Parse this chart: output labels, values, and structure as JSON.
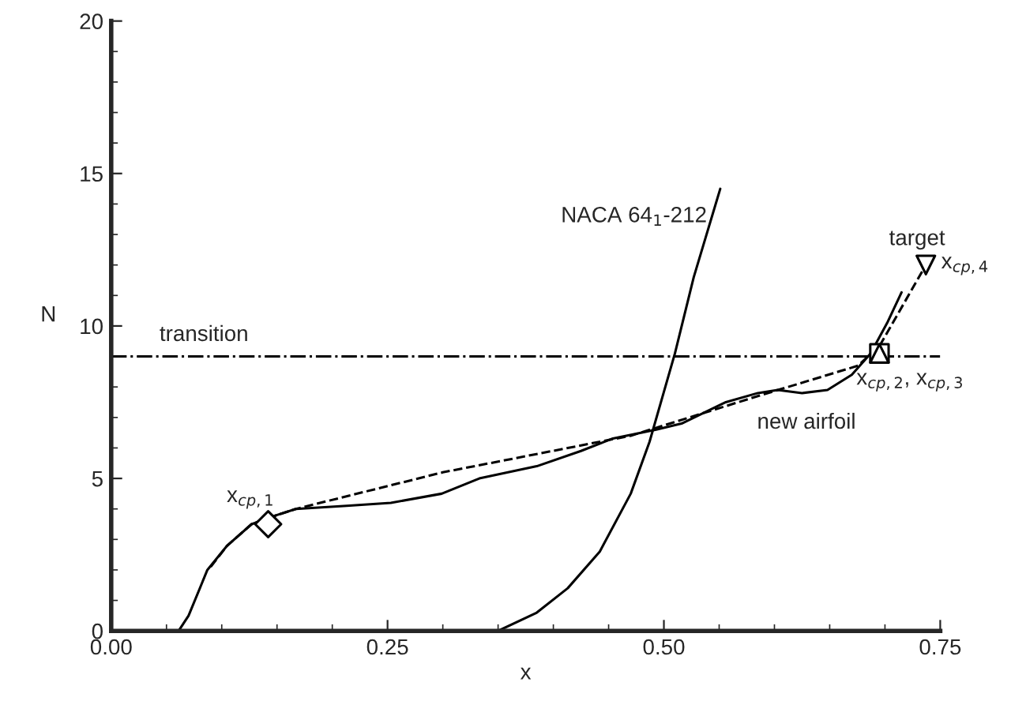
{
  "chart_data": {
    "type": "line",
    "xlabel": "x",
    "ylabel": "N",
    "xlim": [
      0,
      0.75
    ],
    "ylim": [
      0,
      20
    ],
    "xticks": [
      {
        "value": 0,
        "label": "0.00"
      },
      {
        "value": 0.25,
        "label": "0.25"
      },
      {
        "value": 0.5,
        "label": "0.50"
      },
      {
        "value": 0.75,
        "label": "0.75"
      }
    ],
    "yticks": [
      0,
      5,
      10,
      15,
      20
    ],
    "grid": false,
    "legend": false,
    "series": [
      {
        "name": "new airfoil",
        "color": "#000000",
        "line_style": "solid",
        "x": [
          0.061,
          0.07,
          0.087,
          0.105,
          0.127,
          0.15,
          0.167,
          0.213,
          0.253,
          0.299,
          0.333,
          0.385,
          0.425,
          0.453,
          0.493,
          0.516,
          0.556,
          0.585,
          0.603,
          0.625,
          0.648,
          0.67,
          0.687,
          0.702,
          0.715
        ],
        "values": [
          0,
          0.5,
          2.0,
          2.8,
          3.5,
          3.8,
          4.0,
          4.1,
          4.2,
          4.5,
          5.0,
          5.4,
          5.9,
          6.3,
          6.6,
          6.8,
          7.5,
          7.8,
          7.9,
          7.8,
          7.9,
          8.4,
          9.1,
          10.1,
          11.1
        ]
      },
      {
        "color": "#000000",
        "line_style": "dashed",
        "x": [
          0.09,
          0.105,
          0.127,
          0.15,
          0.167,
          0.3,
          0.47,
          0.585,
          0.676,
          0.696,
          0.737
        ],
        "values": [
          2.1,
          2.8,
          3.5,
          3.8,
          4.0,
          5.2,
          6.4,
          7.7,
          8.7,
          9.4,
          12.0
        ]
      },
      {
        "name": "NACA 64$_{1}$-212",
        "color": "#000000",
        "line_style": "solid",
        "x": [
          0.33,
          0.35,
          0.385,
          0.413,
          0.442,
          0.47,
          0.487,
          0.51,
          0.527,
          0.551
        ],
        "values": [
          0,
          0,
          0.6,
          1.4,
          2.6,
          4.5,
          6.2,
          9.1,
          11.6,
          14.5
        ]
      },
      {
        "type": "scatter",
        "name": "x$_{cp,1}$",
        "color": "#000000",
        "marker": "diamond",
        "x": [
          0.142
        ],
        "values": [
          3.5
        ]
      },
      {
        "type": "scatter",
        "name": "x$_{cp,2}$, x$_{cp,3}$",
        "color": "#000000",
        "marker": "square",
        "x": [
          0.695
        ],
        "values": [
          9.1
        ]
      },
      {
        "type": "scatter",
        "color": "#000000",
        "marker": "triangle",
        "x": [
          0.695
        ],
        "values": [
          9.1
        ]
      },
      {
        "type": "scatter",
        "name": "target",
        "color": "#000000",
        "marker": "triangle_down",
        "x": [
          0.737
        ],
        "values": [
          12.0
        ]
      }
    ],
    "ref_lines": [
      {
        "axis": "y",
        "value": 9,
        "label": "transition",
        "color": "#000000",
        "line_style": "dashdot"
      }
    ],
    "annotations": [
      {
        "text": "x$_{cp,4}$",
        "x": 0.737,
        "y": 12.0
      }
    ]
  }
}
